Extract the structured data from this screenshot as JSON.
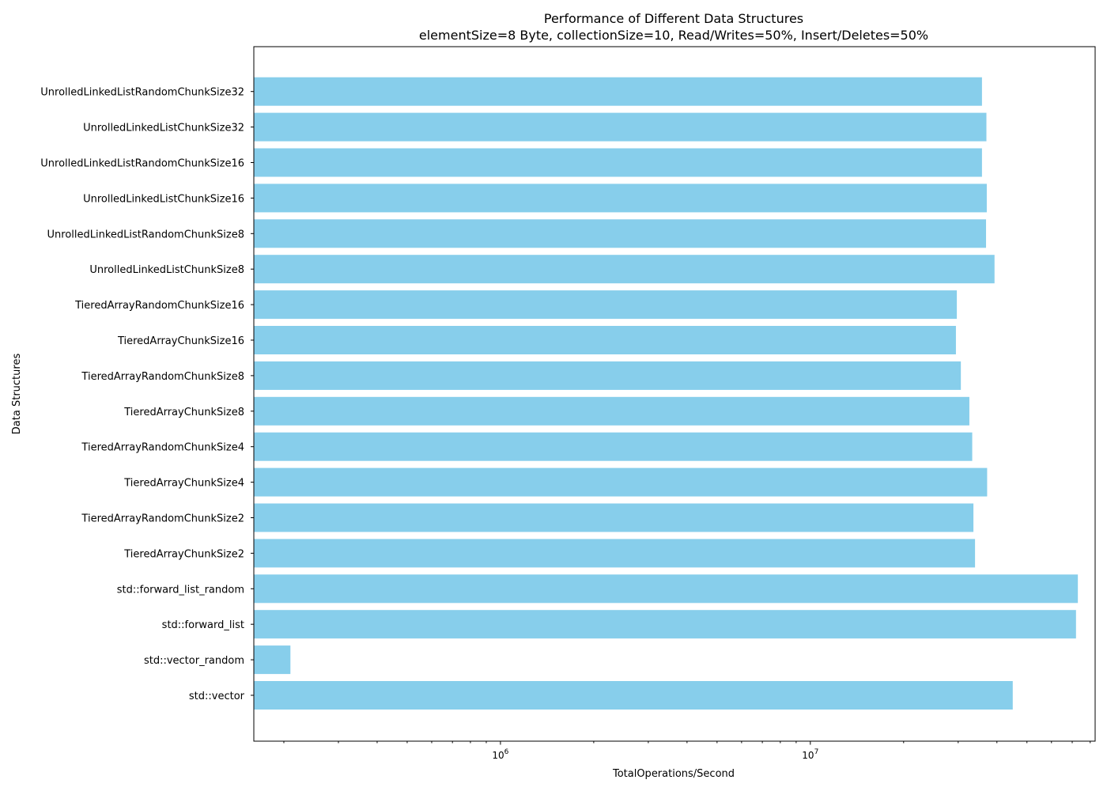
{
  "chart_data": {
    "type": "bar",
    "orientation": "horizontal",
    "title": "Performance of Different Data Structures",
    "subtitle": "elementSize=8 Byte, collectionSize=10, Read/Writes=50%, Insert/Deletes=50%",
    "xlabel": "TotalOperations/Second",
    "ylabel": "Data Structures",
    "x_scale": "log",
    "xlim": [
      160000,
      83000000
    ],
    "x_major_ticks": [
      {
        "value": 1000000,
        "label_base": "10",
        "label_exp": "6"
      },
      {
        "value": 10000000,
        "label_base": "10",
        "label_exp": "7"
      }
    ],
    "bar_color": "#87CEEB",
    "grid": false,
    "categories": [
      "std::vector",
      "std::vector_random",
      "std::forward_list",
      "std::forward_list_random",
      "TieredArrayChunkSize2",
      "TieredArrayRandomChunkSize2",
      "TieredArrayChunkSize4",
      "TieredArrayRandomChunkSize4",
      "TieredArrayChunkSize8",
      "TieredArrayRandomChunkSize8",
      "TieredArrayChunkSize16",
      "TieredArrayRandomChunkSize16",
      "UnrolledLinkedListChunkSize8",
      "UnrolledLinkedListRandomChunkSize8",
      "UnrolledLinkedListChunkSize16",
      "UnrolledLinkedListRandomChunkSize16",
      "UnrolledLinkedListChunkSize32",
      "UnrolledLinkedListRandomChunkSize32"
    ],
    "values": [
      45000000,
      210000,
      72000000,
      73000000,
      34000000,
      33600000,
      37200000,
      33300000,
      32600000,
      30600000,
      29500000,
      29700000,
      39300000,
      36900000,
      37100000,
      35800000,
      37000000,
      35800000
    ]
  }
}
